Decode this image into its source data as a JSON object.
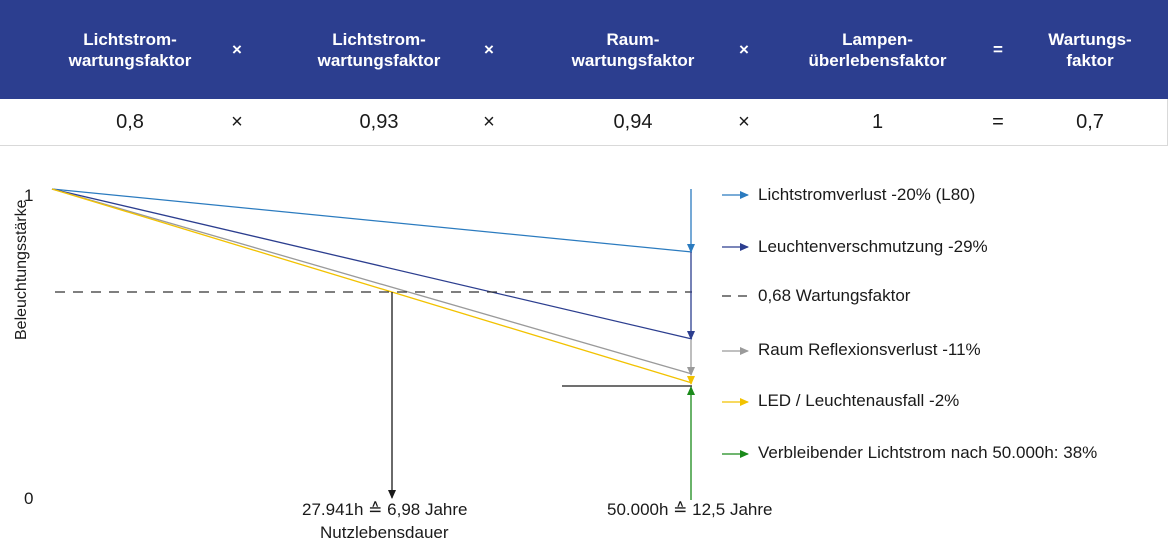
{
  "table": {
    "headers": [
      "Lichtstrom-\nwartungsfaktor",
      "×",
      "Lichtstrom-\nwartungsfaktor",
      "×",
      "Raum-\nwartungsfaktor",
      "×",
      "Lampen-\nüberlebensfaktor",
      "=",
      "Wartungs-\nfaktor"
    ],
    "values": [
      "0,8",
      "×",
      "0,93",
      "×",
      "0,94",
      "×",
      "1",
      "=",
      "0,7"
    ],
    "header_color": "#2c3e8f"
  },
  "diagram": {
    "y_axis_label": "Beleuchtungsstärke",
    "y_tick_top": "1",
    "y_tick_bottom": "0",
    "marker_left_line1": "27.941h ≙ 6,98 Jahre",
    "marker_left_line2": "Nutzlebensdauer",
    "marker_right": "50.000h ≙ 12,5 Jahre",
    "legend": [
      {
        "label": "Lichtstromverlust -20% (L80)",
        "color": "#2b7bbf",
        "style": "arrow"
      },
      {
        "label": "Leuchtenverschmutzung -29%",
        "color": "#2c3e8f",
        "style": "arrow"
      },
      {
        "label": "0,68 Wartungsfaktor",
        "color": "#333333",
        "style": "dashed"
      },
      {
        "label": "Raum Reflexionsverlust -11%",
        "color": "#9a9a9a",
        "style": "arrow"
      },
      {
        "label": "LED / Leuchtenausfall -2%",
        "color": "#f2c200",
        "style": "arrow"
      },
      {
        "label": "Verbleibender Lichtstrom nach 50.000h: 38%",
        "color": "#1a8a1a",
        "style": "arrow"
      }
    ]
  }
}
